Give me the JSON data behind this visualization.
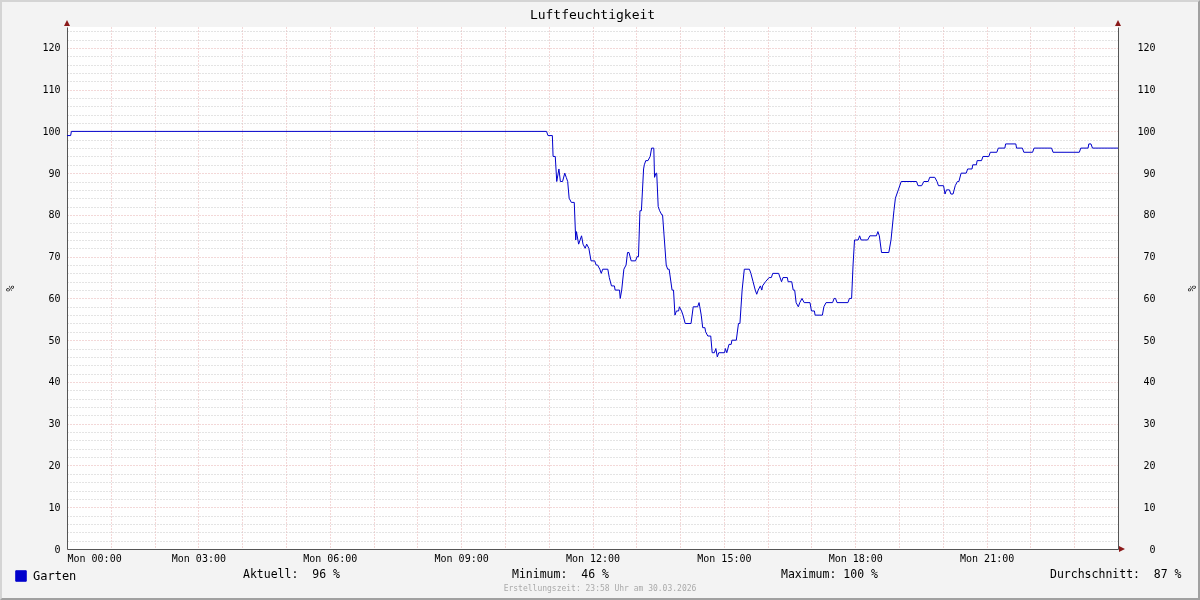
{
  "chart_data": {
    "type": "line",
    "title": "Luftfeuchtigkeit",
    "ylabel": "%",
    "y2label": "%",
    "xlim": [
      "2026-03-30T00:00",
      "2026-03-31T00:00"
    ],
    "xticks": [
      {
        "value": "2026-03-30T00:00",
        "label": "Mon 00:00"
      },
      {
        "value": "2026-03-30T01:00",
        "label": null
      },
      {
        "value": "2026-03-30T02:00",
        "label": null
      },
      {
        "value": "2026-03-30T03:00",
        "label": "Mon 03:00"
      },
      {
        "value": "2026-03-30T04:00",
        "label": null
      },
      {
        "value": "2026-03-30T05:00",
        "label": null
      },
      {
        "value": "2026-03-30T06:00",
        "label": "Mon 06:00"
      },
      {
        "value": "2026-03-30T07:00",
        "label": null
      },
      {
        "value": "2026-03-30T08:00",
        "label": null
      },
      {
        "value": "2026-03-30T09:00",
        "label": "Mon 09:00"
      },
      {
        "value": "2026-03-30T10:00",
        "label": null
      },
      {
        "value": "2026-03-30T11:00",
        "label": null
      },
      {
        "value": "2026-03-30T12:00",
        "label": "Mon 12:00"
      },
      {
        "value": "2026-03-30T13:00",
        "label": null
      },
      {
        "value": "2026-03-30T14:00",
        "label": null
      },
      {
        "value": "2026-03-30T15:00",
        "label": "Mon 15:00"
      },
      {
        "value": "2026-03-30T16:00",
        "label": null
      },
      {
        "value": "2026-03-30T17:00",
        "label": null
      },
      {
        "value": "2026-03-30T18:00",
        "label": "Mon 18:00"
      },
      {
        "value": "2026-03-30T19:00",
        "label": null
      },
      {
        "value": "2026-03-30T20:00",
        "label": null
      },
      {
        "value": "2026-03-30T21:00",
        "label": "Mon 21:00"
      },
      {
        "value": "2026-03-30T22:00",
        "label": null
      },
      {
        "value": "2026-03-30T23:00",
        "label": null
      }
    ],
    "ylim": [
      0,
      125
    ],
    "yticks": [
      0,
      10,
      20,
      30,
      40,
      50,
      60,
      70,
      80,
      90,
      100,
      110,
      120
    ],
    "y2lim": [
      0,
      125
    ],
    "y2ticks": [
      0,
      10,
      20,
      30,
      40,
      50,
      60,
      70,
      80,
      90,
      100,
      110,
      120
    ],
    "grid": true,
    "legend": "bottom left",
    "x": [
      "2026-03-30T00:00",
      "2026-03-30T00:05",
      "2026-03-30T00:06",
      "2026-03-30T10:57",
      "2026-03-30T10:59",
      "2026-03-30T11:05",
      "2026-03-30T11:06",
      "2026-03-30T11:09",
      "2026-03-30T11:11",
      "2026-03-30T11:13",
      "2026-03-30T11:14",
      "2026-03-30T11:16",
      "2026-03-30T11:19",
      "2026-03-30T11:22",
      "2026-03-30T11:24",
      "2026-03-30T11:26",
      "2026-03-30T11:28",
      "2026-03-30T11:31",
      "2026-03-30T11:35",
      "2026-03-30T11:37",
      "2026-03-30T11:38",
      "2026-03-30T11:41",
      "2026-03-30T11:45",
      "2026-03-30T11:47",
      "2026-03-30T11:50",
      "2026-03-30T11:52",
      "2026-03-30T11:55",
      "2026-03-30T11:58",
      "2026-03-30T12:03",
      "2026-03-30T12:05",
      "2026-03-30T12:07",
      "2026-03-30T12:10",
      "2026-03-30T12:12",
      "2026-03-30T12:14",
      "2026-03-30T12:21",
      "2026-03-30T12:23",
      "2026-03-30T12:26",
      "2026-03-30T12:30",
      "2026-03-30T12:31",
      "2026-03-30T12:37",
      "2026-03-30T12:38",
      "2026-03-30T12:40",
      "2026-03-30T12:43",
      "2026-03-30T12:46",
      "2026-03-30T12:48",
      "2026-03-30T12:50",
      "2026-03-30T12:53",
      "2026-03-30T12:59",
      "2026-03-30T13:01",
      "2026-03-30T13:03",
      "2026-03-30T13:05",
      "2026-03-30T13:07",
      "2026-03-30T13:10",
      "2026-03-30T13:11",
      "2026-03-30T13:13",
      "2026-03-30T13:16",
      "2026-03-30T13:19",
      "2026-03-30T13:21",
      "2026-03-30T13:24",
      "2026-03-30T13:25",
      "2026-03-30T13:27",
      "2026-03-30T13:28",
      "2026-03-30T13:30",
      "2026-03-30T13:32",
      "2026-03-30T13:35",
      "2026-03-30T13:36",
      "2026-03-30T13:41",
      "2026-03-30T13:43",
      "2026-03-30T13:45",
      "2026-03-30T13:49",
      "2026-03-30T13:51",
      "2026-03-30T13:53",
      "2026-03-30T13:55",
      "2026-03-30T13:58",
      "2026-03-30T13:59",
      "2026-03-30T14:02",
      "2026-03-30T14:04",
      "2026-03-30T14:07",
      "2026-03-30T14:15",
      "2026-03-30T14:18",
      "2026-03-30T14:24",
      "2026-03-30T14:26",
      "2026-03-30T14:27",
      "2026-03-30T14:29",
      "2026-03-30T14:31",
      "2026-03-30T14:34",
      "2026-03-30T14:35",
      "2026-03-30T14:38",
      "2026-03-30T14:42",
      "2026-03-30T14:44",
      "2026-03-30T14:47",
      "2026-03-30T14:49",
      "2026-03-30T14:51",
      "2026-03-30T14:53",
      "2026-03-30T15:01",
      "2026-03-30T15:02",
      "2026-03-30T15:04",
      "2026-03-30T15:07",
      "2026-03-30T15:10",
      "2026-03-30T15:11",
      "2026-03-30T15:17",
      "2026-03-30T15:20",
      "2026-03-30T15:22",
      "2026-03-30T15:25",
      "2026-03-30T15:28",
      "2026-03-30T15:35",
      "2026-03-30T15:37",
      "2026-03-30T15:40",
      "2026-03-30T15:43",
      "2026-03-30T15:45",
      "2026-03-30T15:47",
      "2026-03-30T15:50",
      "2026-03-30T15:52",
      "2026-03-30T15:53",
      "2026-03-30T15:57",
      "2026-03-30T16:02",
      "2026-03-30T16:05",
      "2026-03-30T16:07",
      "2026-03-30T16:15",
      "2026-03-30T16:19",
      "2026-03-30T16:21",
      "2026-03-30T16:27",
      "2026-03-30T16:28",
      "2026-03-30T16:33",
      "2026-03-30T16:35",
      "2026-03-30T16:37",
      "2026-03-30T16:39",
      "2026-03-30T16:42",
      "2026-03-30T16:44",
      "2026-03-30T16:47",
      "2026-03-30T16:50",
      "2026-03-30T16:58",
      "2026-03-30T17:00",
      "2026-03-30T17:04",
      "2026-03-30T17:05",
      "2026-03-30T17:15",
      "2026-03-30T17:17",
      "2026-03-30T17:20",
      "2026-03-30T17:29",
      "2026-03-30T17:31",
      "2026-03-30T17:33",
      "2026-03-30T17:35",
      "2026-03-30T17:50",
      "2026-03-30T17:52",
      "2026-03-30T17:55",
      "2026-03-30T17:57",
      "2026-03-30T17:59",
      "2026-03-30T18:04",
      "2026-03-30T18:06",
      "2026-03-30T18:08",
      "2026-03-30T18:17",
      "2026-03-30T18:20",
      "2026-03-30T18:29",
      "2026-03-30T18:31",
      "2026-03-30T18:33",
      "2026-03-30T18:36",
      "2026-03-30T18:46",
      "2026-03-30T18:49",
      "2026-03-30T18:53",
      "2026-03-30T18:55",
      "2026-03-30T18:59",
      "2026-03-30T19:03",
      "2026-03-30T19:24",
      "2026-03-30T19:26",
      "2026-03-30T19:31",
      "2026-03-30T19:34",
      "2026-03-30T19:40",
      "2026-03-30T19:42",
      "2026-03-30T19:49",
      "2026-03-30T19:52",
      "2026-03-30T19:54",
      "2026-03-30T20:01",
      "2026-03-30T20:03",
      "2026-03-30T20:05",
      "2026-03-30T20:09",
      "2026-03-30T20:11",
      "2026-03-30T20:14",
      "2026-03-30T20:17",
      "2026-03-30T20:20",
      "2026-03-30T20:22",
      "2026-03-30T20:25",
      "2026-03-30T20:32",
      "2026-03-30T20:34",
      "2026-03-30T20:40",
      "2026-03-30T20:41",
      "2026-03-30T20:46",
      "2026-03-30T20:47",
      "2026-03-30T20:53",
      "2026-03-30T20:55",
      "2026-03-30T21:03",
      "2026-03-30T21:05",
      "2026-03-30T21:14",
      "2026-03-30T21:16",
      "2026-03-30T21:25",
      "2026-03-30T21:26",
      "2026-03-30T21:40",
      "2026-03-30T21:41",
      "2026-03-30T21:49",
      "2026-03-30T21:51",
      "2026-03-30T22:03",
      "2026-03-30T22:05",
      "2026-03-30T22:29",
      "2026-03-30T22:31",
      "2026-03-30T23:07",
      "2026-03-30T23:09",
      "2026-03-30T23:19",
      "2026-03-30T23:20",
      "2026-03-30T23:23",
      "2026-03-30T23:25",
      "2026-03-31T00:00"
    ],
    "series": [
      {
        "name": "Garten",
        "color": "#0000cc",
        "values": [
          99,
          99,
          100,
          100,
          99,
          99,
          94,
          94,
          88,
          90,
          91,
          88,
          88,
          90,
          89,
          88,
          84,
          83,
          83,
          74,
          76,
          73,
          75,
          73,
          72,
          73,
          72,
          69,
          69,
          68,
          68,
          67,
          66,
          67,
          67,
          65,
          63,
          63,
          62,
          62,
          60,
          62,
          67,
          68,
          71,
          71,
          69,
          69,
          70,
          70,
          81,
          81,
          91,
          92,
          93,
          93,
          94,
          96,
          96,
          89,
          90,
          90,
          82,
          81,
          80,
          80,
          68,
          67,
          67,
          62,
          62,
          56,
          57,
          57,
          58,
          57,
          56,
          54,
          54,
          58,
          58,
          59,
          58,
          56,
          53,
          53,
          52,
          51,
          51,
          47,
          47,
          48,
          46,
          47,
          47,
          48,
          47,
          49,
          49,
          50,
          50,
          54,
          54,
          62,
          67,
          67,
          66,
          64,
          62,
          61,
          62,
          63,
          62,
          63,
          64,
          65,
          65,
          66,
          66,
          64,
          65,
          65,
          64,
          64,
          62,
          62,
          59,
          58,
          59,
          60,
          59,
          59,
          57,
          57,
          56,
          56,
          58,
          59,
          59,
          60,
          60,
          59,
          59,
          60,
          60,
          68,
          74,
          74,
          75,
          74,
          74,
          75,
          75,
          76,
          75,
          71,
          71,
          74,
          81,
          84,
          86,
          88,
          88,
          87,
          87,
          88,
          88,
          89,
          89,
          88,
          87,
          87,
          85,
          86,
          86,
          85,
          85,
          87,
          88,
          88,
          90,
          90,
          91,
          91,
          92,
          92,
          93,
          93,
          94,
          94,
          95,
          95,
          96,
          96,
          97,
          97,
          96,
          96,
          95,
          95,
          96,
          96,
          95,
          95,
          96,
          96,
          97,
          97,
          96,
          96
        ]
      }
    ],
    "annotations": [
      "Aktuell:  96 %",
      "Minimum:  46 %",
      "Maximum: 100 %",
      "Durchschnitt:  87 %",
      "Erstellungszeit: 23:58 Uhr am 30.03.2026"
    ]
  }
}
